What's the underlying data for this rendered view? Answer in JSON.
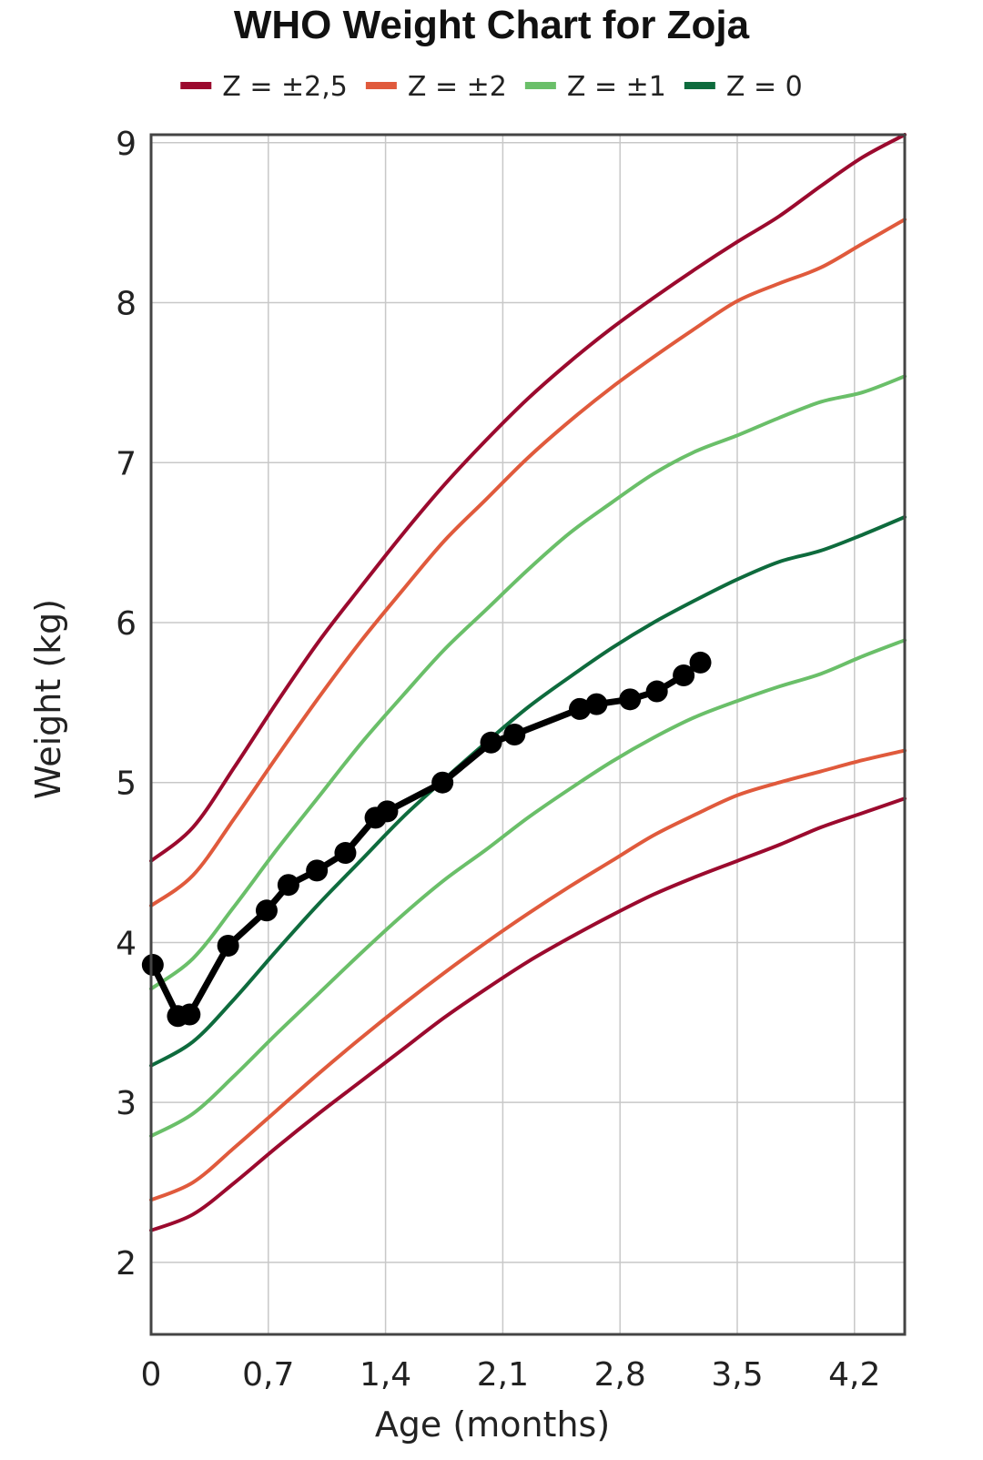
{
  "chart_data": {
    "type": "line",
    "title": "WHO Weight Chart for Zoja",
    "xlabel": "Age (months)",
    "ylabel": "Weight (kg)",
    "xlim": [
      0,
      4.5
    ],
    "ylim": [
      1.55,
      9.05
    ],
    "x_ticks": [
      0,
      0.7,
      1.4,
      2.1,
      2.8,
      3.5,
      4.2
    ],
    "x_tick_labels": [
      "0",
      "0,7",
      "1,4",
      "2,1",
      "2,8",
      "3,5",
      "4,2"
    ],
    "y_ticks": [
      2,
      3,
      4,
      5,
      6,
      7,
      8,
      9
    ],
    "y_tick_labels": [
      "2",
      "3",
      "4",
      "5",
      "6",
      "7",
      "8",
      "9"
    ],
    "grid": true,
    "legend_position": "top",
    "legend": [
      {
        "label": "Z = ±2,5",
        "color": "#9b0a2e"
      },
      {
        "label": "Z = ±2",
        "color": "#e05a3c"
      },
      {
        "label": "Z = ±1",
        "color": "#6abf69"
      },
      {
        "label": "Z = 0",
        "color": "#0e6b3d"
      }
    ],
    "reference_x": [
      0,
      0.25,
      0.5,
      0.75,
      1.0,
      1.25,
      1.5,
      1.75,
      2.0,
      2.25,
      2.5,
      2.75,
      3.0,
      3.25,
      3.5,
      3.75,
      4.0,
      4.25,
      4.5
    ],
    "series": [
      {
        "group": "Z = ±2,5",
        "color": "#9b0a2e",
        "values": [
          2.2,
          2.3,
          2.5,
          2.72,
          2.93,
          3.13,
          3.33,
          3.53,
          3.71,
          3.88,
          4.03,
          4.17,
          4.3,
          4.41,
          4.51,
          4.61,
          4.72,
          4.81,
          4.9
        ]
      },
      {
        "group": "Z = ±2",
        "color": "#e05a3c",
        "values": [
          2.39,
          2.5,
          2.72,
          2.95,
          3.18,
          3.4,
          3.61,
          3.81,
          4.0,
          4.18,
          4.35,
          4.51,
          4.67,
          4.8,
          4.92,
          5.0,
          5.07,
          5.14,
          5.2
        ]
      },
      {
        "group": "Z = ±1",
        "color": "#6abf69",
        "values": [
          2.79,
          2.93,
          3.17,
          3.43,
          3.68,
          3.93,
          4.17,
          4.39,
          4.58,
          4.78,
          4.96,
          5.13,
          5.28,
          5.41,
          5.51,
          5.6,
          5.68,
          5.79,
          5.89
        ]
      },
      {
        "group": "Z = 0",
        "color": "#0e6b3d",
        "values": [
          3.23,
          3.38,
          3.65,
          3.95,
          4.24,
          4.51,
          4.78,
          5.02,
          5.25,
          5.47,
          5.66,
          5.84,
          6.0,
          6.14,
          6.27,
          6.38,
          6.45,
          6.55,
          6.66
        ]
      },
      {
        "group": "Z = ±1",
        "color": "#6abf69",
        "values": [
          3.71,
          3.9,
          4.23,
          4.58,
          4.91,
          5.24,
          5.54,
          5.83,
          6.08,
          6.33,
          6.56,
          6.75,
          6.93,
          7.07,
          7.17,
          7.28,
          7.38,
          7.44,
          7.54
        ]
      },
      {
        "group": "Z = ±2",
        "color": "#e05a3c",
        "values": [
          4.23,
          4.42,
          4.78,
          5.16,
          5.53,
          5.88,
          6.2,
          6.51,
          6.77,
          7.03,
          7.26,
          7.47,
          7.66,
          7.84,
          8.01,
          8.12,
          8.22,
          8.37,
          8.52
        ]
      },
      {
        "group": "Z = ±2,5",
        "color": "#9b0a2e",
        "values": [
          4.51,
          4.72,
          5.1,
          5.5,
          5.88,
          6.22,
          6.55,
          6.86,
          7.14,
          7.4,
          7.63,
          7.84,
          8.03,
          8.21,
          8.38,
          8.54,
          8.73,
          8.91,
          9.05
        ]
      }
    ],
    "measurements": {
      "color": "#000000",
      "x": [
        0.01,
        0.16,
        0.23,
        0.46,
        0.69,
        0.82,
        0.99,
        1.16,
        1.34,
        1.41,
        1.74,
        2.03,
        2.17,
        2.56,
        2.66,
        2.86,
        3.02,
        3.18,
        3.28
      ],
      "y": [
        3.86,
        3.54,
        3.55,
        3.98,
        4.2,
        4.36,
        4.45,
        4.56,
        4.78,
        4.82,
        5.0,
        5.25,
        5.3,
        5.46,
        5.49,
        5.52,
        5.57,
        5.67,
        5.75
      ]
    }
  }
}
